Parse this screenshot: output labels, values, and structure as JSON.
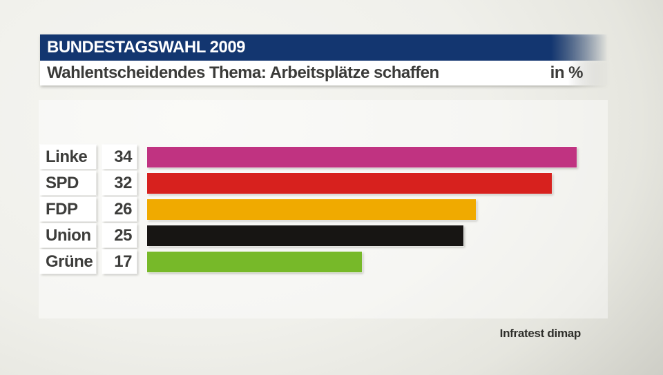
{
  "header": {
    "title": "BUNDESTAGSWAHL 2009",
    "subtitle": "Wahlentscheidendes Thema: Arbeitsplätze schaffen",
    "unit_label": "in %"
  },
  "source": "Infratest dimap",
  "colors": {
    "header_blue": "#133670",
    "header_text": "#ffffff",
    "subtitle_text": "#3b3b39",
    "row_text": "#3d3d3b",
    "background_light": "#f0f0eb",
    "background_dark": "#a7a79e"
  },
  "chart_data": {
    "type": "bar",
    "orientation": "horizontal",
    "title": "Wahlentscheidendes Thema: Arbeitsplätze schaffen",
    "unit": "%",
    "categories": [
      "Linke",
      "SPD",
      "FDP",
      "Union",
      "Grüne"
    ],
    "values": [
      34,
      32,
      26,
      25,
      17
    ],
    "bar_colors": [
      "#c03381",
      "#d7211e",
      "#f0aa00",
      "#171513",
      "#77b929"
    ],
    "xlim": [
      0,
      36
    ],
    "grid": false,
    "legend": "none",
    "source": "Infratest dimap"
  }
}
